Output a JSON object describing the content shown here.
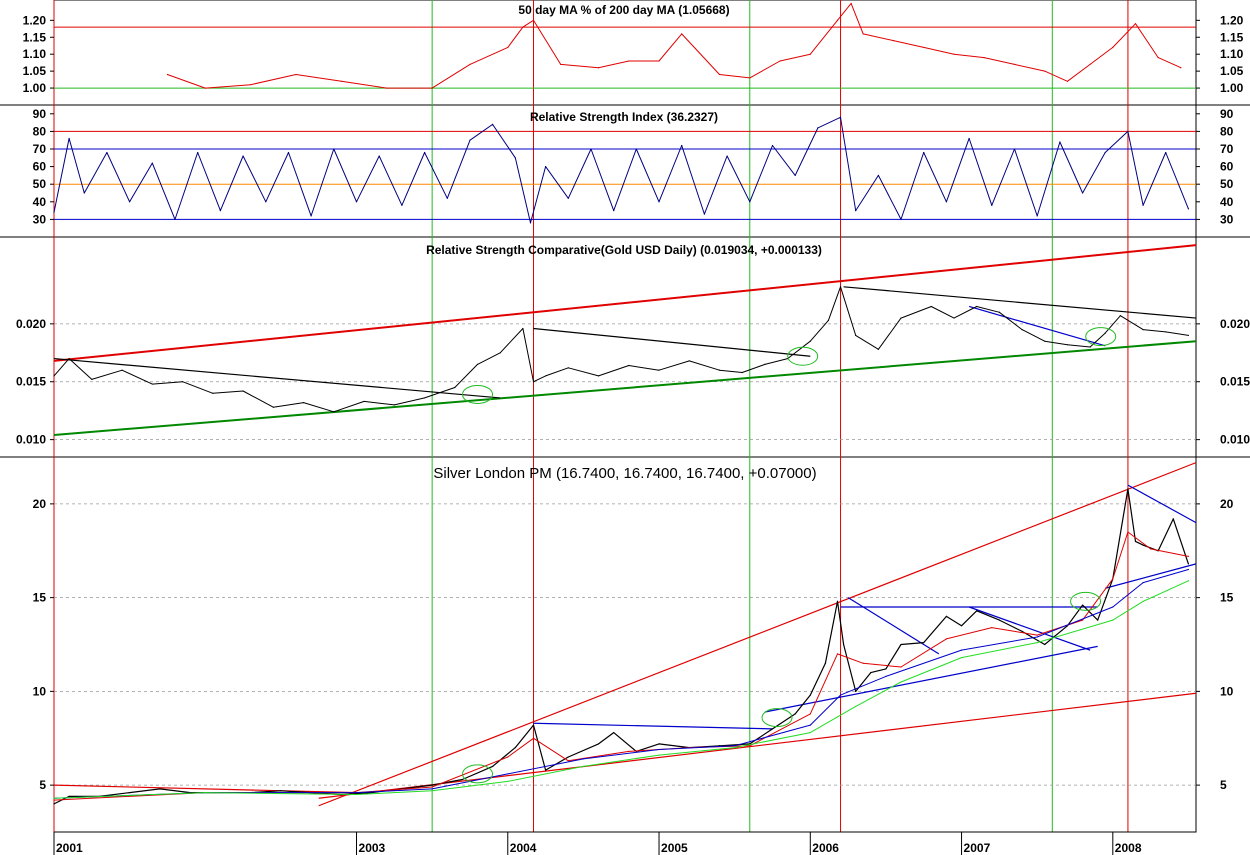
{
  "chart_data": [
    {
      "type": "line",
      "title": "50 day MA % of 200 day MA (1.05668)",
      "yticks": [
        1.0,
        1.05,
        1.1,
        1.15,
        1.2
      ],
      "ytick_labels": [
        "1.00",
        "1.05",
        "1.10",
        "1.15",
        "1.20"
      ],
      "ylim": [
        0.95,
        1.26
      ],
      "hlines": [
        {
          "value": 1.18,
          "color": "#e00000"
        },
        {
          "value": 1.0,
          "color": "#22bb22"
        }
      ],
      "series": [
        {
          "color": "#e00000",
          "x": [
            2001.75,
            2002.0,
            2002.3,
            2002.6,
            2002.9,
            2003.2,
            2003.5,
            2003.75,
            2004.0,
            2004.1,
            2004.17,
            2004.35,
            2004.6,
            2004.8,
            2005.0,
            2005.15,
            2005.4,
            2005.6,
            2005.8,
            2006.0,
            2006.18,
            2006.27,
            2006.35,
            2006.55,
            2006.75,
            2006.95,
            2007.15,
            2007.35,
            2007.55,
            2007.7,
            2007.85,
            2008.0,
            2008.15,
            2008.3,
            2008.45
          ],
          "values": [
            1.04,
            1.0,
            1.01,
            1.04,
            1.02,
            1.0,
            1.0,
            1.07,
            1.12,
            1.18,
            1.2,
            1.07,
            1.06,
            1.08,
            1.08,
            1.16,
            1.04,
            1.03,
            1.08,
            1.1,
            1.2,
            1.25,
            1.16,
            1.14,
            1.12,
            1.1,
            1.09,
            1.07,
            1.05,
            1.02,
            1.07,
            1.12,
            1.19,
            1.09,
            1.06
          ]
        }
      ]
    },
    {
      "type": "line",
      "title": "Relative Strength Index (36.2327)",
      "yticks": [
        30,
        40,
        50,
        60,
        70,
        80,
        90
      ],
      "ytick_labels": [
        "30",
        "40",
        "50",
        "60",
        "70",
        "80",
        "90"
      ],
      "ylim": [
        20,
        95
      ],
      "hlines": [
        {
          "value": 80,
          "color": "#e00000"
        },
        {
          "value": 70,
          "color": "#0000cc"
        },
        {
          "value": 50,
          "color": "#ff8800"
        },
        {
          "value": 30,
          "color": "#0000cc"
        }
      ],
      "series": [
        {
          "color": "#000080",
          "x": [
            2001.0,
            2001.1,
            2001.2,
            2001.35,
            2001.5,
            2001.65,
            2001.8,
            2001.95,
            2002.1,
            2002.25,
            2002.4,
            2002.55,
            2002.7,
            2002.85,
            2003.0,
            2003.15,
            2003.3,
            2003.45,
            2003.6,
            2003.75,
            2003.9,
            2004.05,
            2004.15,
            2004.25,
            2004.4,
            2004.55,
            2004.7,
            2004.85,
            2005.0,
            2005.15,
            2005.3,
            2005.45,
            2005.6,
            2005.75,
            2005.9,
            2006.05,
            2006.2,
            2006.3,
            2006.45,
            2006.6,
            2006.75,
            2006.9,
            2007.05,
            2007.2,
            2007.35,
            2007.5,
            2007.65,
            2007.8,
            2007.95,
            2008.1,
            2008.2,
            2008.35,
            2008.5
          ],
          "values": [
            34,
            76,
            45,
            68,
            40,
            62,
            30,
            68,
            35,
            66,
            40,
            68,
            32,
            70,
            40,
            66,
            38,
            68,
            42,
            75,
            84,
            65,
            28,
            60,
            42,
            70,
            35,
            70,
            40,
            72,
            33,
            66,
            40,
            72,
            55,
            82,
            88,
            35,
            55,
            30,
            68,
            40,
            76,
            38,
            70,
            32,
            74,
            45,
            68,
            80,
            38,
            68,
            36
          ]
        }
      ]
    },
    {
      "type": "line",
      "title": "Relative Strength Comparative(Gold USD Daily) (0.019034, +0.000133)",
      "yticks": [
        0.01,
        0.015,
        0.02
      ],
      "ytick_labels": [
        "0.010",
        "0.015",
        "0.020"
      ],
      "ylim": [
        0.0085,
        0.0275
      ],
      "series": [
        {
          "color": "#000000",
          "x": [
            2001.0,
            2001.1,
            2001.25,
            2001.45,
            2001.65,
            2001.85,
            2002.05,
            2002.25,
            2002.45,
            2002.65,
            2002.85,
            2003.05,
            2003.25,
            2003.45,
            2003.65,
            2003.8,
            2003.95,
            2004.1,
            2004.17,
            2004.25,
            2004.4,
            2004.6,
            2004.8,
            2005.0,
            2005.2,
            2005.4,
            2005.55,
            2005.7,
            2005.85,
            2006.0,
            2006.12,
            2006.2,
            2006.3,
            2006.45,
            2006.6,
            2006.8,
            2006.95,
            2007.1,
            2007.25,
            2007.4,
            2007.55,
            2007.7,
            2007.85,
            2007.95,
            2008.05,
            2008.2,
            2008.35,
            2008.5
          ],
          "values": [
            0.0155,
            0.017,
            0.0152,
            0.016,
            0.0148,
            0.015,
            0.014,
            0.0142,
            0.0128,
            0.0132,
            0.0124,
            0.0133,
            0.013,
            0.0136,
            0.0145,
            0.0165,
            0.0175,
            0.0196,
            0.015,
            0.0155,
            0.0162,
            0.0155,
            0.0164,
            0.016,
            0.0168,
            0.016,
            0.0158,
            0.0165,
            0.017,
            0.0185,
            0.0203,
            0.0232,
            0.019,
            0.0178,
            0.0205,
            0.0215,
            0.0205,
            0.0215,
            0.021,
            0.0195,
            0.0185,
            0.0182,
            0.018,
            0.0192,
            0.0207,
            0.0195,
            0.0193,
            0.019
          ]
        }
      ],
      "trendlines": [
        {
          "color": "#e00000",
          "from": [
            2001.0,
            0.0168
          ],
          "to": [
            2008.55,
            0.0268
          ]
        },
        {
          "color": "#008800",
          "from": [
            2001.0,
            0.0104
          ],
          "to": [
            2008.55,
            0.0185
          ]
        },
        {
          "color": "#000000",
          "from": [
            2001.0,
            0.017
          ],
          "to": [
            2003.95,
            0.0136
          ]
        },
        {
          "color": "#000000",
          "from": [
            2004.17,
            0.0196
          ],
          "to": [
            2006.0,
            0.0172
          ]
        },
        {
          "color": "#000000",
          "from": [
            2006.22,
            0.0232
          ],
          "to": [
            2008.55,
            0.0205
          ]
        },
        {
          "color": "#0000cc",
          "from": [
            2007.05,
            0.0215
          ],
          "to": [
            2007.95,
            0.0181
          ]
        }
      ],
      "markers": [
        {
          "x": 2003.8,
          "y": 0.0139,
          "color": "#22bb22"
        },
        {
          "x": 2005.95,
          "y": 0.0172,
          "color": "#22bb22"
        },
        {
          "x": 2007.92,
          "y": 0.0189,
          "color": "#22bb22"
        }
      ]
    },
    {
      "type": "line",
      "title": "Silver London PM (16.7400, 16.7400, 16.7400, +0.07000)",
      "yticks": [
        5,
        10,
        15,
        20
      ],
      "ytick_labels": [
        "5",
        "10",
        "15",
        "20"
      ],
      "ylim": [
        2.5,
        22.5
      ],
      "series": [
        {
          "color": "#000000",
          "x": [
            2001.0,
            2001.1,
            2001.3,
            2001.5,
            2001.7,
            2001.9,
            2002.1,
            2002.3,
            2002.5,
            2002.7,
            2002.9,
            2003.1,
            2003.3,
            2003.5,
            2003.7,
            2003.9,
            2004.05,
            2004.17,
            2004.25,
            2004.4,
            2004.6,
            2004.7,
            2004.85,
            2005.0,
            2005.2,
            2005.4,
            2005.6,
            2005.75,
            2005.9,
            2006.0,
            2006.1,
            2006.18,
            2006.22,
            2006.3,
            2006.4,
            2006.5,
            2006.6,
            2006.75,
            2006.9,
            2007.0,
            2007.1,
            2007.25,
            2007.4,
            2007.55,
            2007.7,
            2007.8,
            2007.9,
            2008.0,
            2008.1,
            2008.15,
            2008.2,
            2008.3,
            2008.4,
            2008.5
          ],
          "values": [
            4.0,
            4.4,
            4.4,
            4.6,
            4.8,
            4.6,
            4.6,
            4.6,
            4.7,
            4.6,
            4.5,
            4.6,
            4.8,
            5.0,
            5.3,
            6.0,
            7.0,
            8.2,
            5.8,
            6.5,
            7.2,
            7.8,
            6.8,
            7.2,
            7.0,
            7.1,
            7.2,
            8.0,
            8.8,
            9.8,
            11.5,
            14.8,
            12.5,
            10.0,
            11.0,
            11.2,
            12.5,
            12.6,
            14.0,
            13.5,
            14.3,
            13.8,
            13.2,
            12.5,
            13.5,
            14.6,
            13.8,
            16.0,
            20.8,
            18.0,
            17.8,
            17.5,
            19.2,
            16.8
          ]
        },
        {
          "color": "#e00000",
          "x": [
            2001.0,
            2002.0,
            2003.0,
            2003.5,
            2004.0,
            2004.17,
            2004.4,
            2004.8,
            2005.2,
            2005.6,
            2006.0,
            2006.18,
            2006.35,
            2006.6,
            2006.9,
            2007.2,
            2007.5,
            2007.8,
            2008.0,
            2008.1,
            2008.25,
            2008.5
          ],
          "values": [
            4.2,
            4.6,
            4.6,
            4.9,
            6.5,
            7.5,
            6.3,
            6.8,
            7.0,
            7.1,
            8.8,
            12.0,
            11.5,
            11.3,
            12.8,
            13.4,
            13.0,
            13.8,
            16.0,
            18.5,
            17.6,
            17.2
          ]
        },
        {
          "color": "#0000cc",
          "x": [
            2001.0,
            2002.0,
            2003.0,
            2003.5,
            2004.0,
            2004.5,
            2005.0,
            2005.5,
            2006.0,
            2006.2,
            2006.5,
            2007.0,
            2007.5,
            2008.0,
            2008.2,
            2008.5
          ],
          "values": [
            4.3,
            4.6,
            4.6,
            4.8,
            5.6,
            6.4,
            6.9,
            7.1,
            8.2,
            9.8,
            10.8,
            12.2,
            12.9,
            14.5,
            15.8,
            16.5
          ]
        },
        {
          "color": "#22dd22",
          "x": [
            2001.0,
            2002.0,
            2003.0,
            2003.5,
            2004.0,
            2004.5,
            2005.0,
            2005.5,
            2006.0,
            2006.3,
            2006.6,
            2007.0,
            2007.5,
            2008.0,
            2008.2,
            2008.5
          ],
          "values": [
            4.3,
            4.6,
            4.5,
            4.7,
            5.2,
            6.0,
            6.6,
            7.0,
            7.8,
            9.2,
            10.5,
            11.8,
            12.6,
            13.8,
            14.8,
            15.9
          ]
        }
      ],
      "trendlines": [
        {
          "color": "#e00000",
          "from": [
            2001.0,
            5.0
          ],
          "to": [
            2003.0,
            4.6
          ]
        },
        {
          "color": "#e00000",
          "from": [
            2002.75,
            3.9
          ],
          "to": [
            2008.55,
            22.2
          ]
        },
        {
          "color": "#e00000",
          "from": [
            2002.75,
            4.3
          ],
          "to": [
            2008.55,
            9.9
          ]
        },
        {
          "color": "#0000cc",
          "from": [
            2004.17,
            8.3
          ],
          "to": [
            2005.75,
            8.0
          ]
        },
        {
          "color": "#0000cc",
          "from": [
            2006.2,
            14.5
          ],
          "to": [
            2007.9,
            14.5
          ]
        },
        {
          "color": "#0000cc",
          "from": [
            2006.25,
            15.0
          ],
          "to": [
            2006.85,
            12.0
          ]
        },
        {
          "color": "#0000cc",
          "from": [
            2007.05,
            14.5
          ],
          "to": [
            2007.85,
            12.2
          ]
        },
        {
          "color": "#0000cc",
          "from": [
            2005.7,
            8.9
          ],
          "to": [
            2007.9,
            12.4
          ]
        },
        {
          "color": "#0000cc",
          "from": [
            2007.95,
            15.5
          ],
          "to": [
            2008.55,
            16.8
          ]
        },
        {
          "color": "#0000cc",
          "from": [
            2008.1,
            21.0
          ],
          "to": [
            2008.55,
            19.0
          ]
        }
      ],
      "markers": [
        {
          "x": 2003.8,
          "y": 5.6,
          "color": "#22bb22"
        },
        {
          "x": 2005.78,
          "y": 8.6,
          "color": "#22bb22"
        },
        {
          "x": 2007.82,
          "y": 14.8,
          "color": "#22bb22"
        }
      ]
    }
  ],
  "vlines": [
    {
      "x": 2001.0,
      "color": "#e00000"
    },
    {
      "x": 2003.5,
      "color": "#22bb22"
    },
    {
      "x": 2004.17,
      "color": "#e00000"
    },
    {
      "x": 2005.6,
      "color": "#22bb22"
    },
    {
      "x": 2006.2,
      "color": "#e00000"
    },
    {
      "x": 2007.6,
      "color": "#22bb22"
    },
    {
      "x": 2008.1,
      "color": "#e00000"
    }
  ],
  "x_axis": {
    "ticks": [
      2001,
      2003,
      2004,
      2005,
      2006,
      2007,
      2008
    ],
    "labels": [
      "2001",
      "2003",
      "2004",
      "2005",
      "2006",
      "2007",
      "2008"
    ],
    "xlim": [
      2001.0,
      2008.55
    ]
  }
}
